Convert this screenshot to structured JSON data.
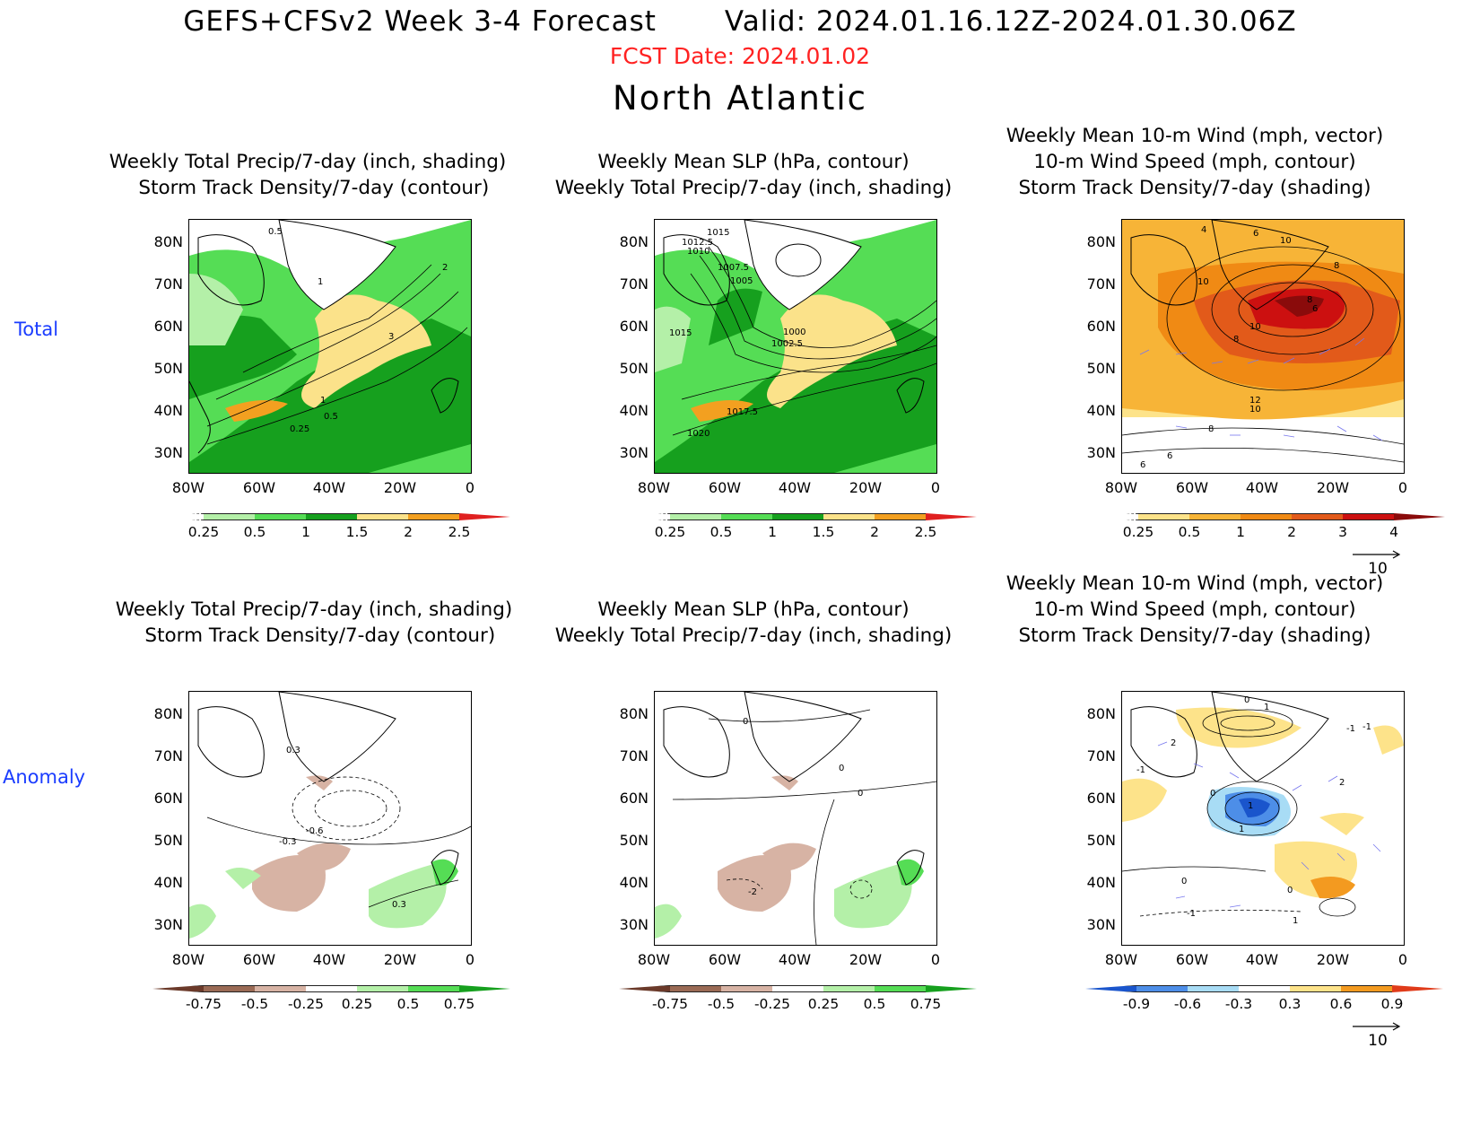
{
  "header": {
    "main_title": "GEFS+CFSv2 Week 3-4 Forecast       Valid: 2024.01.16.12Z-2024.01.30.06Z",
    "fcst_date": "FCST Date: 2024.01.02",
    "region": "North Atlantic"
  },
  "rows": {
    "total_label": "Total",
    "anomaly_label": "Anomaly"
  },
  "panels": [
    {
      "id": "total-precip-track",
      "title": "Weekly Total Precip/7-day (inch, shading)\n  Storm Track Density/7-day (contour)",
      "contour_labels": [
        "0.5",
        "1",
        "2",
        "3",
        "1",
        "0.5",
        "0.25"
      ]
    },
    {
      "id": "total-slp-precip",
      "title": "Weekly Mean SLP (hPa, contour)\nWeekly Total Precip/7-day (inch, shading)",
      "contour_labels": [
        "1015",
        "1012.5",
        "1010",
        "1007.5",
        "1005",
        "1015",
        "1000",
        "1002.5",
        "1017.5",
        "1020"
      ]
    },
    {
      "id": "total-wind-track",
      "title": "Weekly Mean 10-m Wind (mph, vector)\n10-m Wind Speed (mph, contour)\nStorm Track Density/7-day (shading)",
      "contour_labels": [
        "4",
        "6",
        "10",
        "8",
        "10",
        "8",
        "6",
        "8",
        "10",
        "12",
        "10",
        "8",
        "6",
        "6"
      ]
    },
    {
      "id": "anom-precip-track",
      "title": "Weekly Total Precip/7-day (inch, shading)\n  Storm Track Density/7-day (contour)",
      "contour_labels": [
        "0.3",
        "-0.6",
        "-0.3",
        "0.3"
      ]
    },
    {
      "id": "anom-slp-precip",
      "title": "Weekly Mean SLP (hPa, contour)\nWeekly Total Precip/7-day (inch, shading)",
      "contour_labels": [
        "0",
        "0",
        "0",
        "-2"
      ]
    },
    {
      "id": "anom-wind-track",
      "title": "Weekly Mean 10-m Wind (mph, vector)\n10-m Wind Speed (mph, contour)\nStorm Track Density/7-day (shading)",
      "contour_labels": [
        "0",
        "1",
        "-1",
        "2",
        "-1",
        "0",
        "1",
        "1",
        "2",
        "-1",
        "0",
        "-1",
        "0",
        "1"
      ]
    }
  ],
  "axes": {
    "lat_ticks": [
      "80N",
      "70N",
      "60N",
      "50N",
      "40N",
      "30N"
    ],
    "lon_ticks": [
      "80W",
      "60W",
      "40W",
      "20W",
      "0"
    ]
  },
  "colorbars": {
    "precip_total": {
      "labels": [
        "0.25",
        "0.5",
        "1",
        "1.5",
        "2",
        "2.5"
      ],
      "colors": [
        "#ffffff",
        "#b4f0a8",
        "#55dd55",
        "#16a01e",
        "#fbe28a",
        "#f3a020",
        "#e02020"
      ]
    },
    "track_total": {
      "labels": [
        "0.25",
        "0.5",
        "1",
        "2",
        "3",
        "4"
      ],
      "colors": [
        "#ffffff",
        "#fde38a",
        "#f7b437",
        "#f08a14",
        "#e25a1a",
        "#cc1010",
        "#8a0b0b"
      ]
    },
    "precip_anom": {
      "labels": [
        "-0.75",
        "-0.5",
        "-0.25",
        "0.25",
        "0.5",
        "0.75"
      ],
      "colors": [
        "#6b3a2a",
        "#9a6a55",
        "#d7b3a4",
        "#ffffff",
        "#b4f0a8",
        "#55dd55",
        "#16a01e"
      ]
    },
    "track_anom": {
      "labels": [
        "-0.9",
        "-0.6",
        "-0.3",
        "0.3",
        "0.6",
        "0.9"
      ],
      "colors": [
        "#1a55cc",
        "#4d8ee8",
        "#a8dcf5",
        "#ffffff",
        "#fde38a",
        "#f39a20",
        "#e03b1a"
      ]
    }
  },
  "vector_reference": {
    "label": "10"
  }
}
